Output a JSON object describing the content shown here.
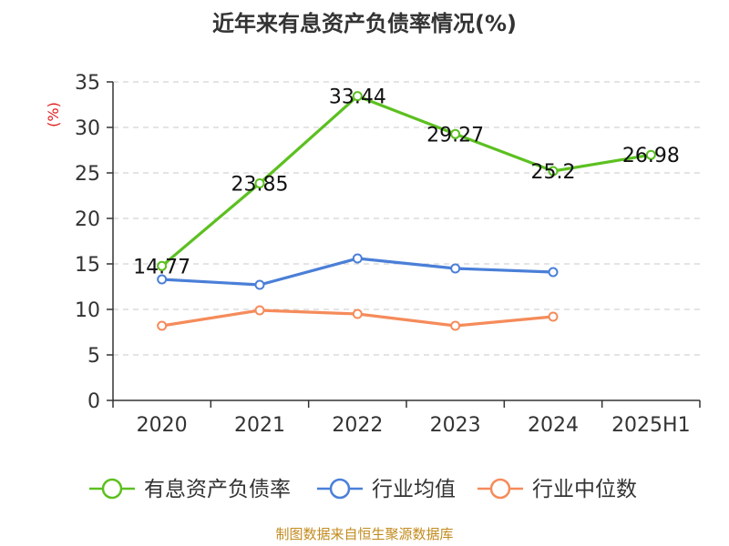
{
  "chart_data": {
    "type": "line",
    "title": "近年来有息资产负债率情况(%)",
    "ylabel": "(%)",
    "xlabel": "",
    "ylim": [
      0,
      35
    ],
    "yticks": [
      0,
      5,
      10,
      15,
      20,
      25,
      30,
      35
    ],
    "grid": true,
    "legend_position": "bottom",
    "categories": [
      "2020",
      "2021",
      "2022",
      "2023",
      "2024",
      "2025H1"
    ],
    "series": [
      {
        "name": "有息资产负债率",
        "color": "#5cc020",
        "values": [
          14.77,
          23.85,
          33.44,
          29.27,
          25.2,
          26.98
        ],
        "labels": [
          "14.77",
          "23.85",
          "33.44",
          "29.27",
          "25.2",
          "26.98"
        ]
      },
      {
        "name": "行业均值",
        "color": "#4a7fd8",
        "values": [
          13.3,
          12.7,
          15.6,
          14.5,
          14.1,
          null
        ]
      },
      {
        "name": "行业中位数",
        "color": "#f58b5a",
        "values": [
          8.2,
          9.9,
          9.5,
          8.2,
          9.2,
          null
        ]
      }
    ]
  },
  "source": "制图数据来自恒生聚源数据库"
}
